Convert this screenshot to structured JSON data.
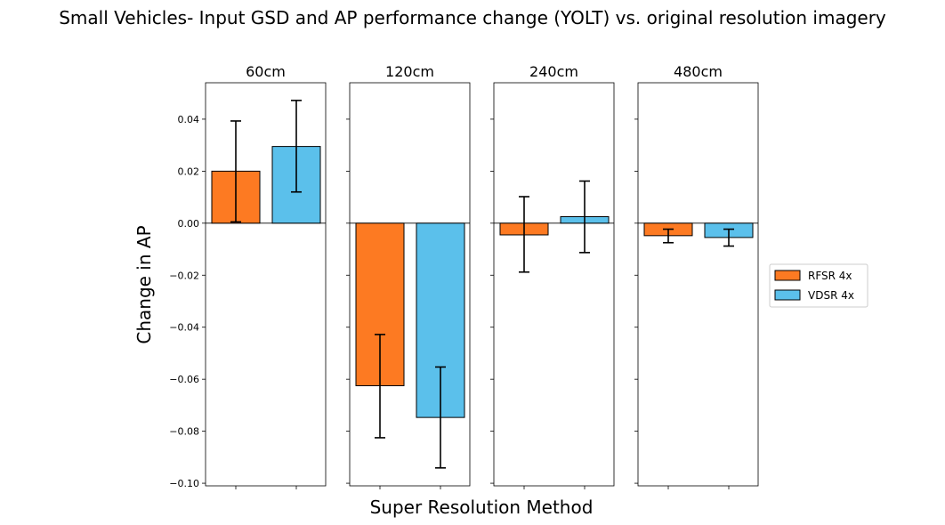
{
  "chart_data": {
    "type": "bar",
    "title": "Small Vehicles- Input GSD and AP performance change (YOLT) vs. original resolution imagery",
    "xlabel": "Super Resolution Method",
    "ylabel": "Change in AP",
    "ylim": [
      -0.101,
      0.054
    ],
    "yticks": [
      {
        "value": 0.04,
        "label": "0.04"
      },
      {
        "value": 0.02,
        "label": "0.02"
      },
      {
        "value": 0.0,
        "label": "0.00"
      },
      {
        "value": -0.02,
        "label": "−0.02"
      },
      {
        "value": -0.04,
        "label": "−0.04"
      },
      {
        "value": -0.06,
        "label": "−0.06"
      },
      {
        "value": -0.08,
        "label": "−0.08"
      },
      {
        "value": -0.1,
        "label": "−0.10"
      }
    ],
    "legend_position": "center-right",
    "series": [
      {
        "name": "RFSR 4x",
        "color": "#fd7a22"
      },
      {
        "name": "VDSR 4x",
        "color": "#5bc0eb"
      }
    ],
    "panels": [
      {
        "title": "60cm",
        "values": [
          0.02,
          0.0295
        ],
        "error_low": [
          0.0005,
          0.012
        ],
        "error_high": [
          0.0393,
          0.0472
        ]
      },
      {
        "title": "120cm",
        "values": [
          -0.0625,
          -0.0747
        ],
        "error_low": [
          -0.0825,
          -0.0941
        ],
        "error_high": [
          -0.0428,
          -0.0553
        ]
      },
      {
        "title": "240cm",
        "values": [
          -0.0045,
          0.0025
        ],
        "error_low": [
          -0.0188,
          -0.0113
        ],
        "error_high": [
          0.0102,
          0.0162
        ]
      },
      {
        "title": "480cm",
        "values": [
          -0.0048,
          -0.0055
        ],
        "error_low": [
          -0.0075,
          -0.0088
        ],
        "error_high": [
          -0.0023,
          -0.0023
        ]
      }
    ]
  }
}
